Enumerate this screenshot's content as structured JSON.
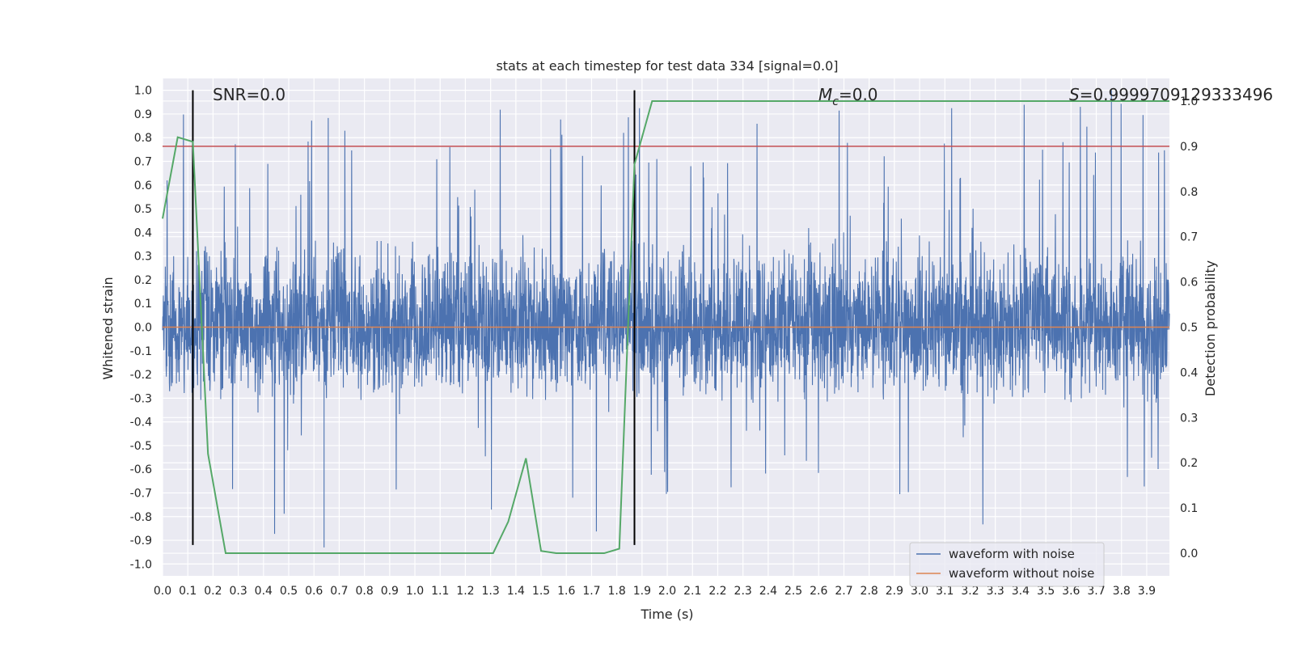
{
  "chart_data": {
    "type": "line",
    "title": "stats at each timestep for test data 334 [signal=0.0]",
    "xlabel": "Time (s)",
    "ylabel": "Whitened strain",
    "ylabel_right": "Detection probability",
    "xlim": [
      0.0,
      3.99
    ],
    "ylim": [
      -1.05,
      1.05
    ],
    "ylim_right": [
      -0.05,
      1.05
    ],
    "xticks": [
      "0.0",
      "0.1",
      "0.2",
      "0.3",
      "0.4",
      "0.5",
      "0.6",
      "0.7",
      "0.8",
      "0.9",
      "1.0",
      "1.1",
      "1.2",
      "1.3",
      "1.4",
      "1.5",
      "1.6",
      "1.7",
      "1.8",
      "1.9",
      "2.0",
      "2.1",
      "2.2",
      "2.3",
      "2.4",
      "2.5",
      "2.6",
      "2.7",
      "2.8",
      "2.9",
      "3.0",
      "3.1",
      "3.2",
      "3.3",
      "3.4",
      "3.5",
      "3.6",
      "3.7",
      "3.8",
      "3.9"
    ],
    "yticks": [
      "-1.0",
      "-0.9",
      "-0.8",
      "-0.7",
      "-0.6",
      "-0.5",
      "-0.4",
      "-0.3",
      "-0.2",
      "-0.1",
      "0.0",
      "0.1",
      "0.2",
      "0.3",
      "0.4",
      "0.5",
      "0.6",
      "0.7",
      "0.8",
      "0.9",
      "1.0"
    ],
    "yticks_right": [
      "0.0",
      "0.1",
      "0.2",
      "0.3",
      "0.4",
      "0.5",
      "0.6",
      "0.7",
      "0.8",
      "0.9",
      "1.0"
    ],
    "grid": true,
    "legend_position": "bottom-right",
    "annotations": {
      "snr": "SNR=0.0",
      "mc_symbol": "M",
      "mc_sub": "c",
      "mc_value": "=0.0",
      "s_symbol": "S",
      "s_value": "=0.9999709129333496"
    },
    "series": [
      {
        "name": "waveform with noise",
        "color": "#4c72b0",
        "kind": "noise",
        "x_range": [
          0.0,
          3.99
        ],
        "typical_range": [
          -0.4,
          0.45
        ],
        "peak_max": 1.0,
        "peak_min": -0.93
      },
      {
        "name": "waveform without noise",
        "color": "#dd8452",
        "x": [
          0.0,
          3.99
        ],
        "y": [
          0.0,
          0.0
        ]
      }
    ],
    "probability_series": {
      "color": "#55a868",
      "x": [
        0.0,
        0.06,
        0.12,
        0.18,
        0.25,
        0.31,
        0.38,
        0.44,
        0.5,
        0.56,
        0.62,
        0.69,
        0.75,
        0.81,
        0.88,
        0.94,
        1.0,
        1.06,
        1.12,
        1.19,
        1.25,
        1.31,
        1.37,
        1.44,
        1.5,
        1.56,
        1.62,
        1.69,
        1.75,
        1.81,
        1.87,
        1.94,
        2.0,
        3.99
      ],
      "y": [
        0.74,
        0.92,
        0.91,
        0.22,
        0.0,
        0.0,
        0.0,
        0.0,
        0.0,
        0.0,
        0.0,
        0.0,
        0.0,
        0.0,
        0.0,
        0.0,
        0.0,
        0.0,
        0.0,
        0.0,
        0.0,
        0.0,
        0.07,
        0.21,
        0.005,
        0.0,
        0.0,
        0.0,
        0.0,
        0.01,
        0.86,
        1.0,
        1.0,
        1.0
      ]
    },
    "threshold": {
      "value": 0.9,
      "axis": "right",
      "color": "#c44e52"
    },
    "vertical_markers": {
      "x": [
        0.12,
        1.87
      ],
      "y_range": [
        -0.92,
        1.0
      ],
      "color": "#000000"
    }
  }
}
